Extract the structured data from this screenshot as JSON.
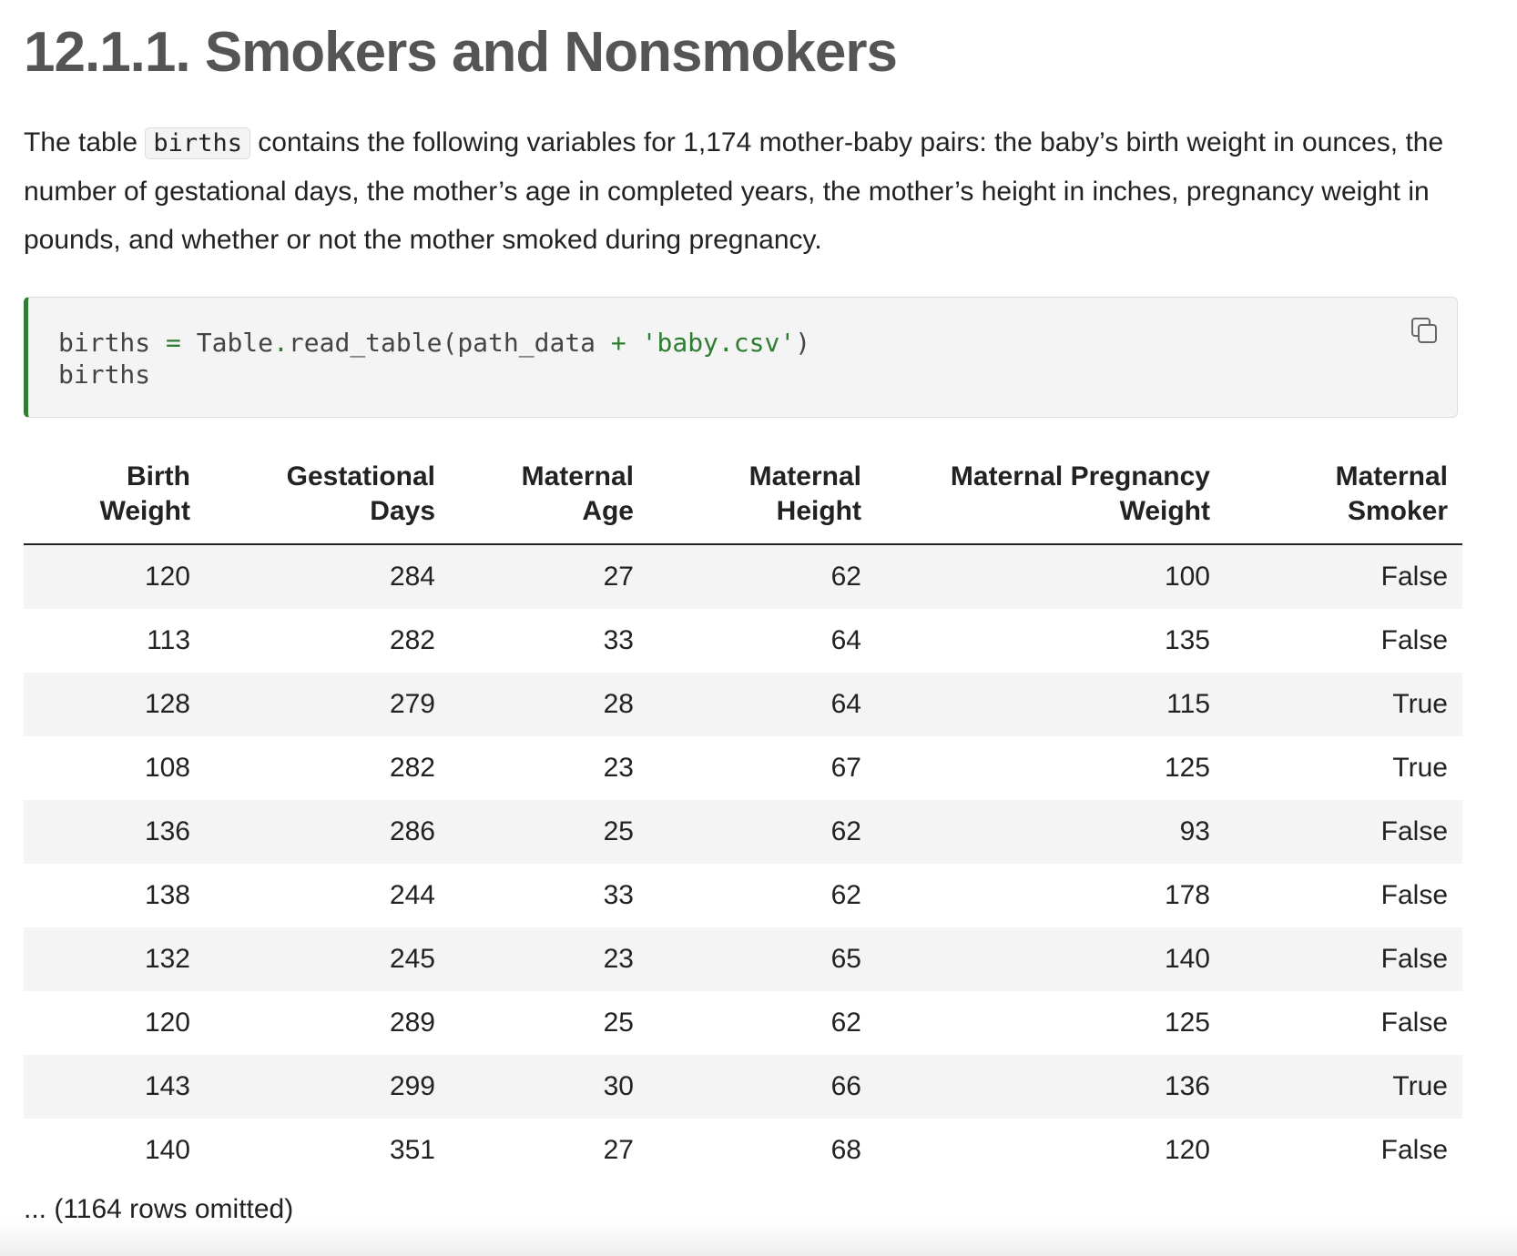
{
  "heading": "12.1.1. Smokers and Nonsmokers",
  "paragraph": {
    "before": "The table ",
    "code": "births",
    "after": " contains the following variables for 1,174 mother-baby pairs: the baby’s birth weight in ounces, the number of gestational days, the mother’s age in completed years, the mother’s height in inches, pregnancy weight in pounds, and whether or not the mother smoked during pregnancy."
  },
  "code": {
    "lines": [
      [
        "births ",
        "=",
        " Table",
        ".",
        "read_table(path_data ",
        "+",
        " ",
        "'baby.csv'",
        ")"
      ],
      [
        "births"
      ]
    ]
  },
  "table": {
    "header": [
      [
        "Birth",
        "Weight"
      ],
      [
        "Gestational",
        "Days"
      ],
      [
        "Maternal",
        "Age"
      ],
      [
        "Maternal",
        "Height"
      ],
      [
        "Maternal Pregnancy",
        "Weight"
      ],
      [
        "Maternal",
        "Smoker"
      ]
    ],
    "rows": [
      [
        120,
        284,
        27,
        62,
        100,
        "False"
      ],
      [
        113,
        282,
        33,
        64,
        135,
        "False"
      ],
      [
        128,
        279,
        28,
        64,
        115,
        "True"
      ],
      [
        108,
        282,
        23,
        67,
        125,
        "True"
      ],
      [
        136,
        286,
        25,
        62,
        93,
        "False"
      ],
      [
        138,
        244,
        33,
        62,
        178,
        "False"
      ],
      [
        132,
        245,
        23,
        65,
        140,
        "False"
      ],
      [
        120,
        289,
        25,
        62,
        125,
        "False"
      ],
      [
        143,
        299,
        30,
        66,
        136,
        "True"
      ],
      [
        140,
        351,
        27,
        68,
        120,
        "False"
      ]
    ],
    "footer": "... (1164 rows omitted)"
  }
}
